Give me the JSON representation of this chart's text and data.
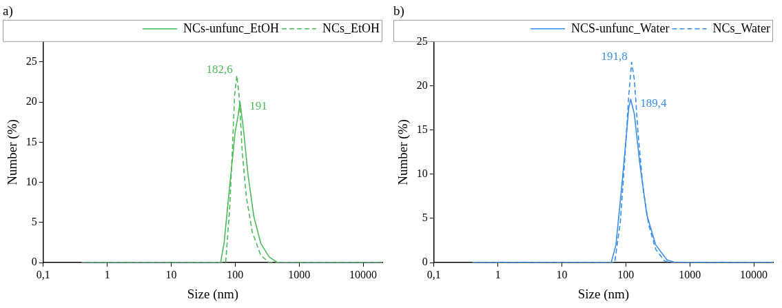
{
  "chart_data": [
    {
      "type": "line",
      "title": "a)",
      "xlabel": "Size (nm)",
      "ylabel": "Number (%)",
      "log": "x",
      "grid": false,
      "legend": "top right",
      "marker": "none",
      "xlim": [
        0.1,
        20000
      ],
      "xticks": [
        {
          "value": 0.1,
          "label": "0,1"
        },
        1,
        10,
        100,
        1000,
        10000
      ],
      "ylim": [
        0,
        27.5
      ],
      "yticks": [
        0,
        5,
        10,
        15,
        20,
        25
      ],
      "series": [
        {
          "name": "NCs-unfunc_EtOH",
          "color": "#4cbb5a",
          "line_style": "solid",
          "x": [
            0.4,
            59,
            67,
            82,
            100,
            111,
            119,
            136,
            159,
            195,
            251,
            339,
            457,
            1000,
            10000,
            20000
          ],
          "values": [
            0,
            0,
            2.4,
            9.5,
            16.3,
            18.3,
            20,
            16.3,
            10.9,
            5.8,
            2.4,
            0.7,
            0,
            0,
            0,
            0
          ]
        },
        {
          "name": "NCs_EtOH",
          "color": "#4cbb5a",
          "line_style": "dashed",
          "x": [
            0.4,
            71,
            82,
            91,
            98,
            106,
            115,
            129,
            150,
            185,
            251,
            339,
            1000,
            10000,
            20000
          ],
          "values": [
            0,
            0,
            6.7,
            14.6,
            20.9,
            23.3,
            20.9,
            13.7,
            8.1,
            3.8,
            0.9,
            0,
            0,
            0,
            0
          ]
        }
      ],
      "annotations": [
        {
          "text": "182,6",
          "x": 106,
          "y": 23.3
        },
        {
          "text": "191",
          "x": 119,
          "y": 20
        }
      ]
    },
    {
      "type": "line",
      "title": "b)",
      "xlabel": "Size (nm)",
      "ylabel": "Number (%)",
      "log": "x",
      "grid": false,
      "legend": "top right",
      "marker": "none",
      "xlim": [
        0.1,
        20000
      ],
      "xticks": [
        {
          "value": 0.1,
          "label": "0,1"
        },
        1,
        10,
        100,
        1000,
        10000
      ],
      "ylim": [
        0,
        25
      ],
      "yticks": [
        0,
        5,
        10,
        15,
        20,
        25
      ],
      "series": [
        {
          "name": "NCS-unfunc_Water",
          "color": "#3a8ee6",
          "line_style": "solid",
          "x": [
            0.4,
            59,
            70,
            86,
            100,
            111,
            119,
            136,
            166,
            213,
            293,
            440,
            600,
            1000,
            10000,
            20000
          ],
          "values": [
            0,
            0,
            2,
            8.5,
            13.7,
            17.5,
            18.5,
            16.8,
            11.1,
            5.4,
            2,
            0.3,
            0,
            0,
            0,
            0
          ]
        },
        {
          "name": "NCs_Water",
          "color": "#3a8ee6",
          "line_style": "dashed",
          "x": [
            0.4,
            67,
            82,
            95,
            111,
            123,
            136,
            154,
            185,
            227,
            293,
            400,
            490,
            1000,
            10000,
            20000
          ],
          "values": [
            0,
            0,
            4.6,
            11.1,
            18.9,
            22.7,
            20.7,
            15,
            8.5,
            4.3,
            1.5,
            0.2,
            0,
            0,
            0,
            0
          ]
        }
      ],
      "annotations": [
        {
          "text": "191,8",
          "x": 123,
          "y": 22.7
        },
        {
          "text": "189,4",
          "x": 119,
          "y": 18.5
        }
      ]
    }
  ]
}
